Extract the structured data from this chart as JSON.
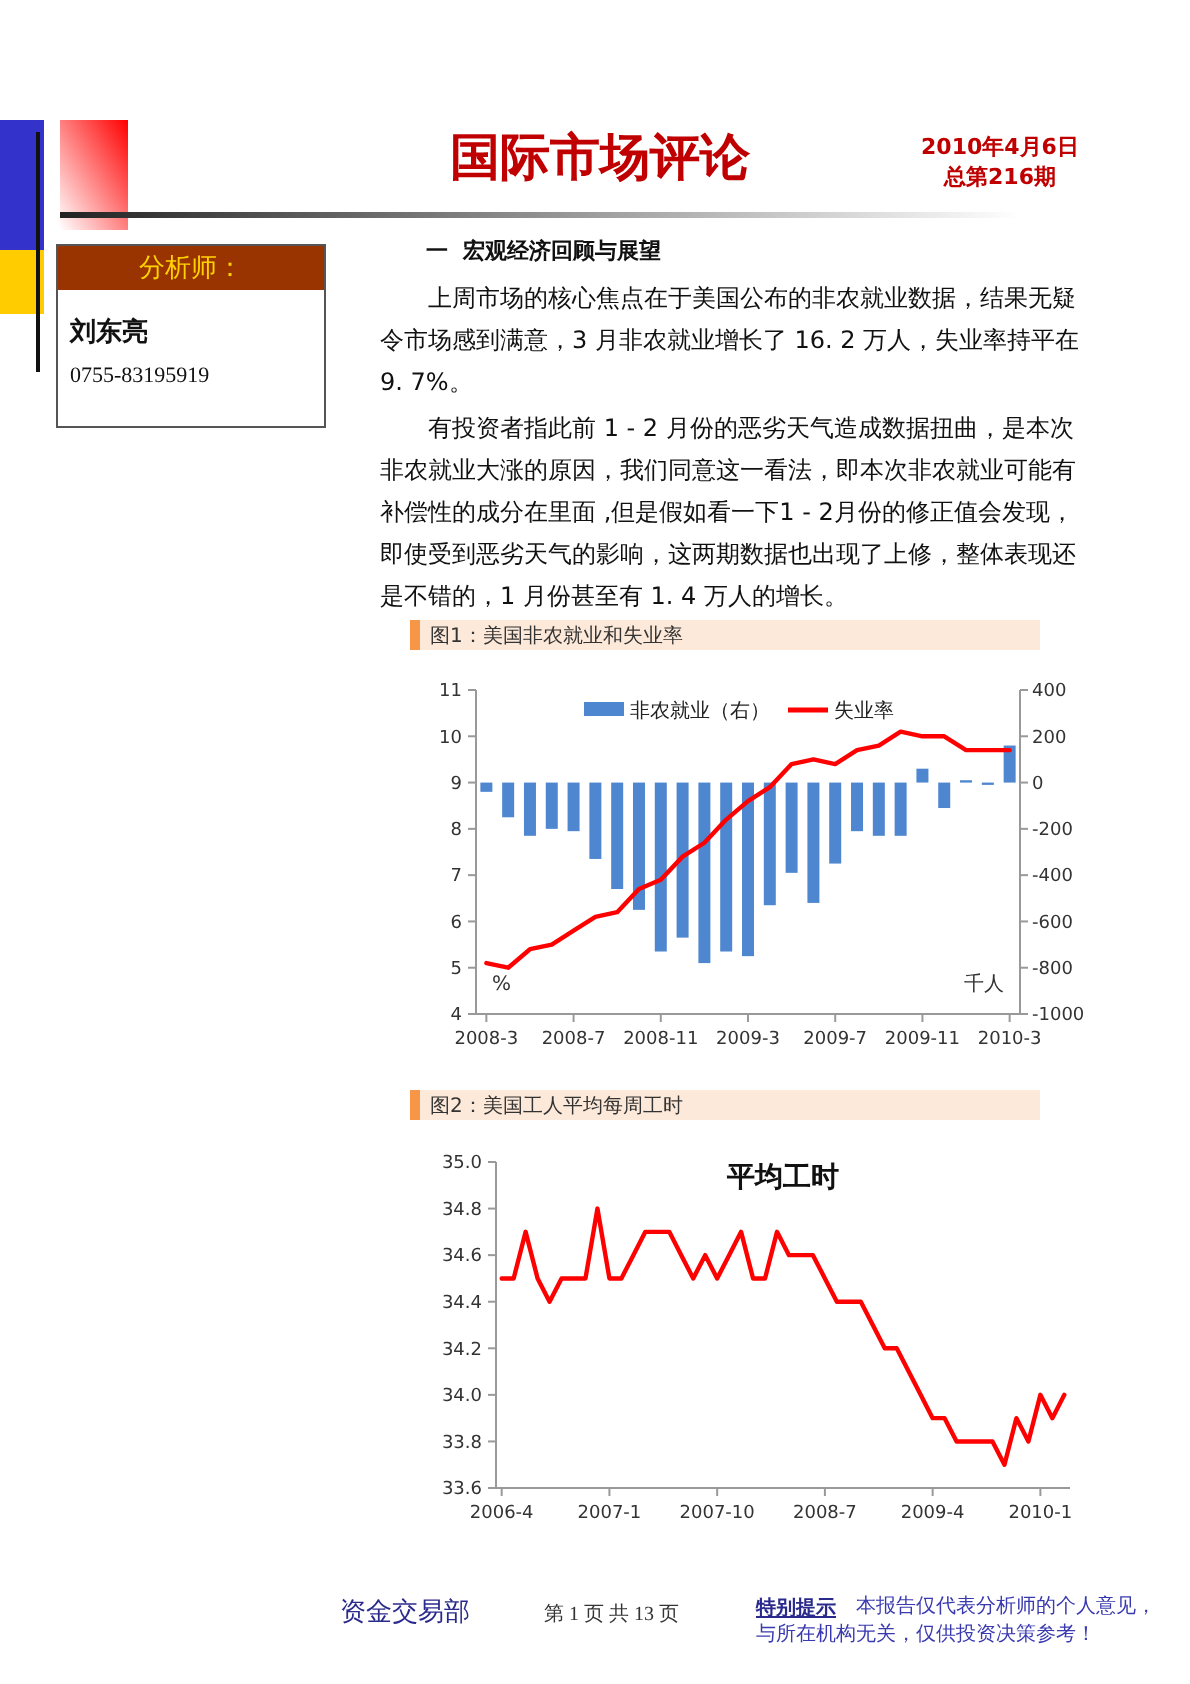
{
  "chart_data": [
    {
      "type": "bar",
      "title": "图1：美国非农就业和失业率",
      "ylabel": "%",
      "y2label": "千人",
      "annotations": [
        "国际市场评论",
        "2010年4月6日",
        "总第216期",
        "分析师：",
        "刘东亮",
        "0755-83195919",
        "一  宏观经济回顾与展望",
        "上周市场的核心焦点在于美国公布的非农就业数据，结果无疑令市场感到满意，3 月非农就业增长了 16. 2 万人，失业率持平在 9. 7%。",
        "有投资者指此前 1 - 2 月份的恶劣天气造成数据扭曲，是本次非农就业大涨的原因，我们同意这一看法，即本次非农就业可能有补偿性的成分在里面 ,但是假如看一下1 - 2月份的修正值会发现，即使受到恶劣天气的影响，这两期数据也出现了上修，整体表现还是不错的，1 月份甚至有 1. 4 万人的增长。",
        "资金交易部",
        "第 1 页 共 13 页",
        "特别提示",
        "本报告仅代表分析师的个人意见，与所在机构无关，仅供投资决策参考！"
      ],
      "categories": [
        "2008-3",
        null,
        null,
        null,
        "2008-7",
        null,
        null,
        null,
        "2008-11",
        null,
        null,
        null,
        "2009-3",
        null,
        null,
        null,
        "2009-7",
        null,
        null,
        null,
        "2009-11",
        null,
        null,
        null,
        "2010-3"
      ],
      "series": [
        {
          "name": "非农就业（右）",
          "axis": "y2",
          "color": "#4f86d0",
          "values": [
            -40,
            -150,
            -230,
            -200,
            -210,
            -330,
            -460,
            -550,
            -730,
            -670,
            -780,
            -730,
            -750,
            -530,
            -390,
            -520,
            -350,
            -210,
            -230,
            -230,
            60,
            -110,
            10,
            -10,
            160
          ]
        },
        {
          "name": "失业率",
          "type": "line",
          "color": "#ff0000",
          "values": [
            5.1,
            5.0,
            5.4,
            5.5,
            5.8,
            6.1,
            6.2,
            6.7,
            6.9,
            7.4,
            7.7,
            8.2,
            8.6,
            8.9,
            9.4,
            9.5,
            9.4,
            9.7,
            9.8,
            10.1,
            10.0,
            10.0,
            9.7,
            9.7,
            9.7
          ]
        }
      ],
      "ylim": [
        4,
        11
      ],
      "yticks": [
        4,
        5,
        6,
        7,
        8,
        9,
        10,
        11
      ],
      "y2lim": [
        -1000,
        400
      ],
      "y2ticks": [
        -1000,
        -800,
        -600,
        -400,
        -200,
        0,
        200,
        400
      ],
      "grid": false,
      "legend": "top"
    },
    {
      "type": "line",
      "title": "图2：美国工人平均每周工时",
      "subtitle": "平均工时",
      "categories": [
        "2006-4",
        null,
        null,
        null,
        null,
        null,
        null,
        null,
        null,
        "2007-1",
        null,
        null,
        null,
        null,
        null,
        null,
        null,
        null,
        "2007-10",
        null,
        null,
        null,
        null,
        null,
        null,
        null,
        null,
        "2008-7",
        null,
        null,
        null,
        null,
        null,
        null,
        null,
        null,
        "2009-4",
        null,
        null,
        null,
        null,
        null,
        null,
        null,
        null,
        "2010-1",
        null,
        null
      ],
      "series": [
        {
          "color": "#ff0000",
          "values": [
            34.5,
            34.5,
            34.7,
            34.5,
            34.4,
            34.5,
            34.5,
            34.5,
            34.8,
            34.5,
            34.5,
            34.6,
            34.7,
            34.7,
            34.7,
            34.6,
            34.5,
            34.6,
            34.5,
            34.6,
            34.7,
            34.5,
            34.5,
            34.7,
            34.6,
            34.6,
            34.6,
            34.5,
            34.4,
            34.4,
            34.4,
            34.3,
            34.2,
            34.2,
            34.1,
            34.0,
            33.9,
            33.9,
            33.8,
            33.8,
            33.8,
            33.8,
            33.7,
            33.9,
            33.8,
            34.0,
            33.9,
            34.0
          ]
        }
      ],
      "ylim": [
        33.6,
        35.0
      ],
      "yticks": [
        {
          "value": 33.6,
          "label": "33.6"
        },
        {
          "value": 33.8,
          "label": "33.8"
        },
        {
          "value": 34,
          "label": "34.0"
        },
        {
          "value": 34.2,
          "label": "34.2"
        },
        {
          "value": 34.4,
          "label": "34.4"
        },
        {
          "value": 34.6,
          "label": "34.6"
        },
        {
          "value": 34.8,
          "label": "34.8"
        },
        {
          "value": 35,
          "label": "35.0"
        }
      ],
      "grid": false
    }
  ]
}
